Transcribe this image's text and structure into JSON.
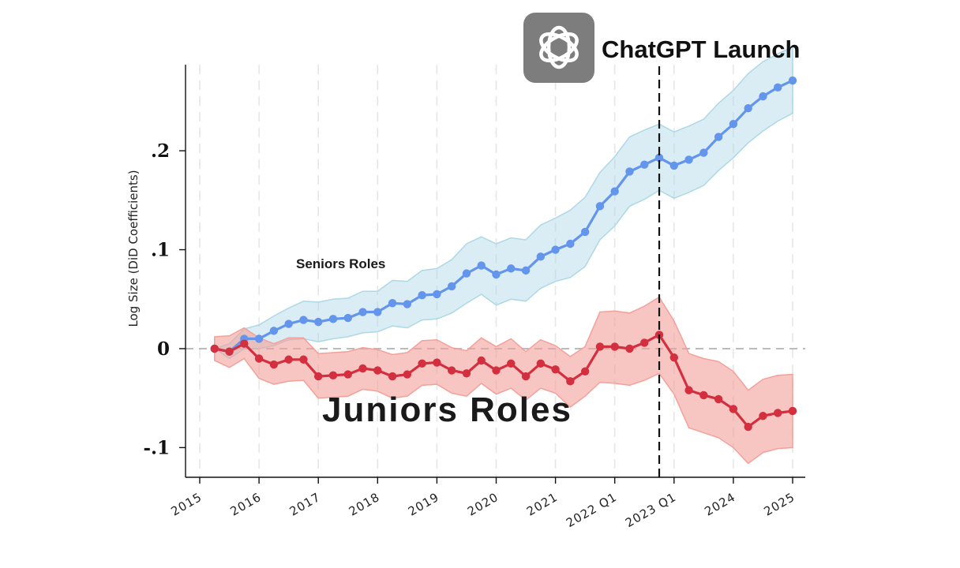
{
  "chart_data": {
    "type": "line",
    "title": "",
    "ylabel": "Log Size (DiD Coefficients)",
    "xlabel": "",
    "ylim": [
      -0.13,
      0.287
    ],
    "xlim": [
      2014.7,
      2025.2
    ],
    "grid": "vertical-dashed",
    "y_ticks": [
      {
        "value": 0.2,
        "label": ".2"
      },
      {
        "value": 0.1,
        "label": ".1"
      },
      {
        "value": 0.0,
        "label": "0"
      },
      {
        "value": -0.1,
        "label": "-.1"
      }
    ],
    "x_ticks": [
      {
        "value": 2015.0,
        "label": "2015"
      },
      {
        "value": 2016.0,
        "label": "2016"
      },
      {
        "value": 2017.0,
        "label": "2017"
      },
      {
        "value": 2018.0,
        "label": "2018"
      },
      {
        "value": 2019.0,
        "label": "2019"
      },
      {
        "value": 2020.0,
        "label": "2020"
      },
      {
        "value": 2021.0,
        "label": "2021"
      },
      {
        "value": 2022.0,
        "label": "2022 Q1"
      },
      {
        "value": 2023.0,
        "label": "2023 Q1"
      },
      {
        "value": 2024.0,
        "label": "2024"
      },
      {
        "value": 2025.0,
        "label": "2025"
      }
    ],
    "x": [
      2015.25,
      2015.5,
      2015.75,
      2016.0,
      2016.25,
      2016.5,
      2016.75,
      2017.0,
      2017.25,
      2017.5,
      2017.75,
      2018.0,
      2018.25,
      2018.5,
      2018.75,
      2019.0,
      2019.25,
      2019.5,
      2019.75,
      2020.0,
      2020.25,
      2020.5,
      2020.75,
      2021.0,
      2021.25,
      2021.5,
      2021.75,
      2022.0,
      2022.25,
      2022.5,
      2022.75,
      2023.0,
      2023.25,
      2023.5,
      2023.75,
      2024.0,
      2024.25,
      2024.5,
      2024.75,
      2025.0
    ],
    "series": [
      {
        "name": "Seniors Roles",
        "color": "#6495ed",
        "band_color": "#add8e6",
        "values": [
          0.0,
          -0.003,
          0.01,
          0.01,
          0.018,
          0.025,
          0.029,
          0.027,
          0.03,
          0.031,
          0.037,
          0.037,
          0.046,
          0.045,
          0.054,
          0.055,
          0.063,
          0.076,
          0.084,
          0.075,
          0.081,
          0.079,
          0.093,
          0.1,
          0.106,
          0.118,
          0.144,
          0.159,
          0.179,
          0.186,
          0.193,
          0.185,
          0.191,
          0.198,
          0.214,
          0.227,
          0.243,
          0.255,
          0.264,
          0.271
        ],
        "lower": [
          0.0,
          -0.01,
          0.0,
          0.0,
          0.003,
          0.009,
          0.01,
          0.007,
          0.01,
          0.012,
          0.016,
          0.017,
          0.023,
          0.021,
          0.029,
          0.03,
          0.036,
          0.046,
          0.055,
          0.044,
          0.05,
          0.048,
          0.061,
          0.068,
          0.072,
          0.083,
          0.11,
          0.124,
          0.144,
          0.151,
          0.16,
          0.152,
          0.158,
          0.165,
          0.18,
          0.193,
          0.208,
          0.22,
          0.23,
          0.238
        ],
        "upper": [
          0.0,
          0.005,
          0.02,
          0.024,
          0.033,
          0.041,
          0.048,
          0.047,
          0.05,
          0.051,
          0.058,
          0.058,
          0.069,
          0.068,
          0.079,
          0.081,
          0.09,
          0.106,
          0.113,
          0.106,
          0.112,
          0.11,
          0.125,
          0.132,
          0.14,
          0.153,
          0.178,
          0.194,
          0.214,
          0.221,
          0.227,
          0.219,
          0.225,
          0.232,
          0.248,
          0.261,
          0.278,
          0.29,
          0.298,
          0.305
        ]
      },
      {
        "name": "Juniors Roles",
        "color": "#d32f3f",
        "band_color": "#f4a09a",
        "values": [
          0.0,
          -0.003,
          0.005,
          -0.01,
          -0.016,
          -0.011,
          -0.011,
          -0.028,
          -0.027,
          -0.026,
          -0.02,
          -0.022,
          -0.028,
          -0.026,
          -0.015,
          -0.014,
          -0.022,
          -0.025,
          -0.012,
          -0.022,
          -0.015,
          -0.028,
          -0.015,
          -0.021,
          -0.033,
          -0.023,
          0.002,
          0.002,
          0.0,
          0.006,
          0.014,
          -0.009,
          -0.042,
          -0.047,
          -0.051,
          -0.061,
          -0.079,
          -0.068,
          -0.065,
          -0.063
        ],
        "lower": [
          -0.012,
          -0.019,
          -0.01,
          -0.03,
          -0.036,
          -0.033,
          -0.032,
          -0.05,
          -0.049,
          -0.048,
          -0.041,
          -0.043,
          -0.05,
          -0.048,
          -0.037,
          -0.036,
          -0.045,
          -0.048,
          -0.035,
          -0.046,
          -0.04,
          -0.052,
          -0.04,
          -0.045,
          -0.059,
          -0.048,
          -0.034,
          -0.035,
          -0.037,
          -0.032,
          -0.025,
          -0.046,
          -0.08,
          -0.085,
          -0.09,
          -0.1,
          -0.116,
          -0.105,
          -0.101,
          -0.1
        ],
        "upper": [
          0.012,
          0.013,
          0.021,
          0.011,
          0.005,
          0.011,
          0.011,
          -0.005,
          -0.004,
          -0.003,
          0.001,
          -0.001,
          -0.006,
          -0.004,
          0.008,
          0.009,
          0.001,
          -0.002,
          0.011,
          0.002,
          0.01,
          -0.003,
          0.009,
          0.003,
          -0.008,
          0.002,
          0.037,
          0.038,
          0.036,
          0.043,
          0.052,
          0.028,
          -0.005,
          -0.01,
          -0.013,
          -0.023,
          -0.042,
          -0.031,
          -0.027,
          -0.026
        ]
      }
    ],
    "annotations": {
      "event_x": 2022.75,
      "event_label": "ChatGPT Launch",
      "event_logo": "openai-logo",
      "senior_label": "Seniors Roles",
      "junior_label": "Juniors Roles"
    }
  }
}
